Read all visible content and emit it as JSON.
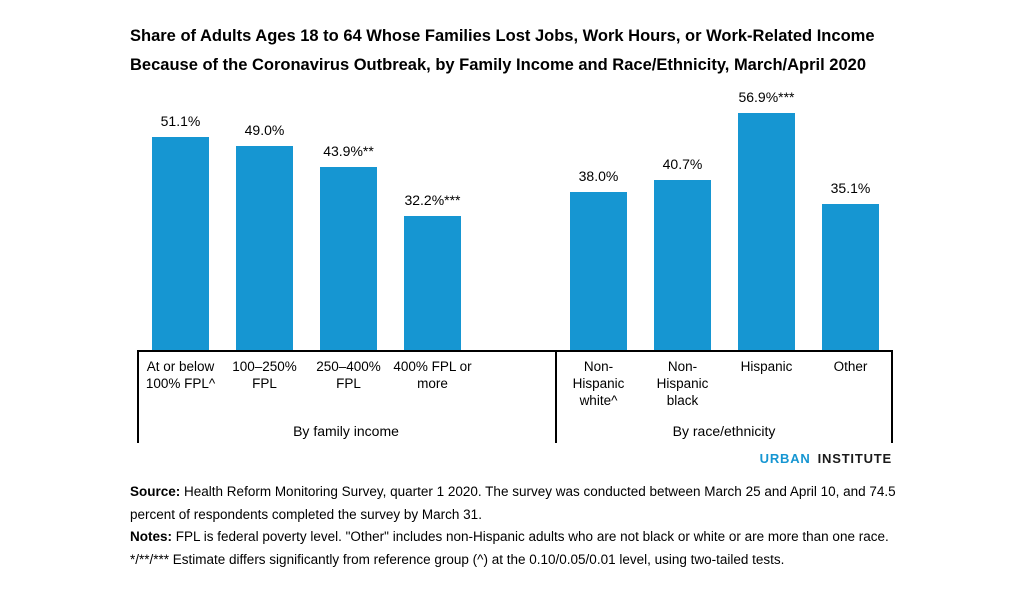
{
  "title": {
    "line1": "Share of Adults Ages 18 to 64 Whose Families Lost Jobs, Work Hours, or Work-Related Income",
    "line2": "Because of the Coronavirus Outbreak, by Family Income and Race/Ethnicity, March/April 2020"
  },
  "chart_data": {
    "type": "bar",
    "title": "Share of Adults Ages 18 to 64 Whose Families Lost Jobs, Work Hours, or Work-Related Income Because of the Coronavirus Outbreak, by Family Income and Race/Ethnicity, March/April 2020",
    "unit": "percent",
    "bar_color": "#1696d2",
    "ylim": [
      0,
      60
    ],
    "grid": false,
    "legend": false,
    "value_labels_shown": true,
    "groups": [
      {
        "label": "By family income",
        "categories": [
          "At or below 100% FPL^",
          "100–250% FPL",
          "250–400% FPL",
          "400% FPL or more"
        ],
        "values": [
          51.1,
          49.0,
          43.9,
          32.2
        ],
        "value_labels": [
          "51.1%",
          "49.0%",
          "43.9%**",
          "32.2%***"
        ]
      },
      {
        "label": "By race/ethnicity",
        "categories": [
          "Non-Hispanic white^",
          "Non-Hispanic black",
          "Hispanic",
          "Other"
        ],
        "values": [
          38.0,
          40.7,
          56.9,
          35.1
        ],
        "value_labels": [
          "38.0%",
          "40.7%",
          "56.9%***",
          "35.1%"
        ]
      }
    ]
  },
  "branding": {
    "primary": "URBAN",
    "secondary": "INSTITUTE",
    "brand_color": "#1696d2"
  },
  "footer": {
    "source_label": "Source:",
    "source_text": "Health Reform Monitoring Survey, quarter 1 2020. The survey was conducted between March 25 and April 10, and 74.5 percent of respondents completed the survey by March 31.",
    "notes_label": "Notes:",
    "notes_text": "FPL is federal poverty level. \"Other\" includes non-Hispanic adults who are not black or white or are more than one race.",
    "significance_note": "*/**/*** Estimate differs significantly from reference group (^) at the 0.10/0.05/0.01 level, using two-tailed tests."
  }
}
